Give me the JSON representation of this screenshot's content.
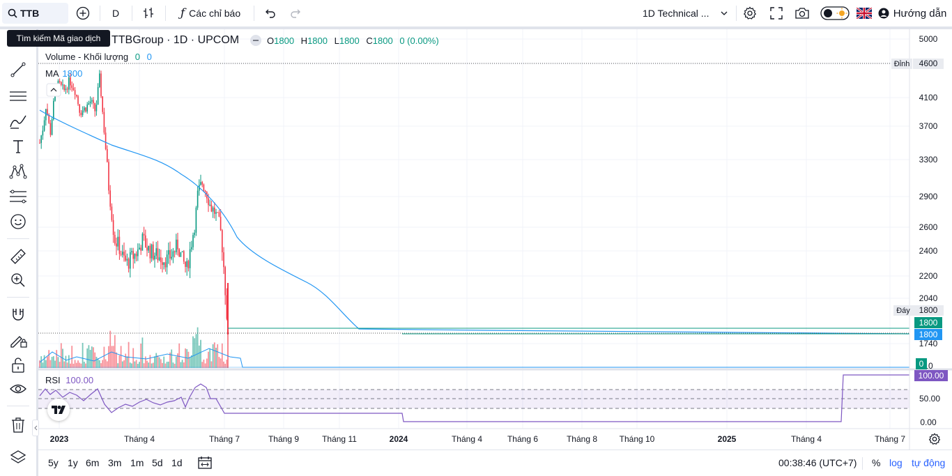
{
  "topbar": {
    "symbol": "TTB",
    "interval": "D",
    "indicators_label": "Các chỉ báo",
    "layout_name": "1D Technical ...",
    "help_label": "Hướng dẫn"
  },
  "tooltip": {
    "text": "Tìm kiếm Mã giao dịch"
  },
  "legend": {
    "title": "TTBGroup · 1D · UPCOM",
    "o_key": "O",
    "o_val": "1800",
    "h_key": "H",
    "h_val": "1800",
    "l_key": "L",
    "l_val": "1800",
    "c_key": "C",
    "c_val": "1800",
    "change": "0 (0.00%)",
    "volume_label": "Volume - Khối lượng",
    "volume_v1": "0",
    "volume_v2": "0",
    "ma_label": "MA",
    "ma_value": "1800",
    "rsi_label": "RSI",
    "rsi_value": "100.00"
  },
  "price_axis": {
    "ticks": [
      "5000",
      "4600",
      "4100",
      "3700",
      "3300",
      "2900",
      "2600",
      "2400",
      "2200",
      "2040",
      "1800",
      "1740",
      "10"
    ],
    "high_tag_label": "Đỉnh",
    "high_tag_value": "4600",
    "low_tag_label": "Đáy",
    "low_tag_value": "1800",
    "last_price_badge": "1800",
    "ma_badge": "1800",
    "volume_badge": "0"
  },
  "rsi_axis": {
    "ticks": [
      "50.00",
      "0.00"
    ],
    "value_badge": "100.00"
  },
  "time_axis": {
    "labels": [
      "2023",
      "Tháng 4",
      "Tháng 7",
      "Tháng 9",
      "Tháng 11",
      "2024",
      "Tháng 4",
      "Tháng 6",
      "Tháng 8",
      "Tháng 10",
      "2025",
      "Tháng 4",
      "Tháng 7"
    ]
  },
  "bottombar": {
    "ranges": [
      "5y",
      "1y",
      "6m",
      "3m",
      "1m",
      "5d",
      "1d"
    ],
    "time": "00:38:46 (UTC+7)",
    "percent": "%",
    "log": "log",
    "auto": "tự động"
  },
  "colors": {
    "up": "#089981",
    "down": "#f23645",
    "ma": "#2196f3",
    "rsi": "#7e57c2",
    "last_price": "#089981"
  },
  "chart_data": {
    "type": "candlestick",
    "symbol": "TTBGroup",
    "interval": "1D",
    "exchange": "UPCOM",
    "last": {
      "open": 1800,
      "high": 1800,
      "low": 1800,
      "close": 1800
    },
    "period_high": 4600,
    "period_low": 1800,
    "ma_last": 1800,
    "rsi_last": 100.0,
    "rsi_levels": [
      70,
      50,
      30
    ]
  }
}
